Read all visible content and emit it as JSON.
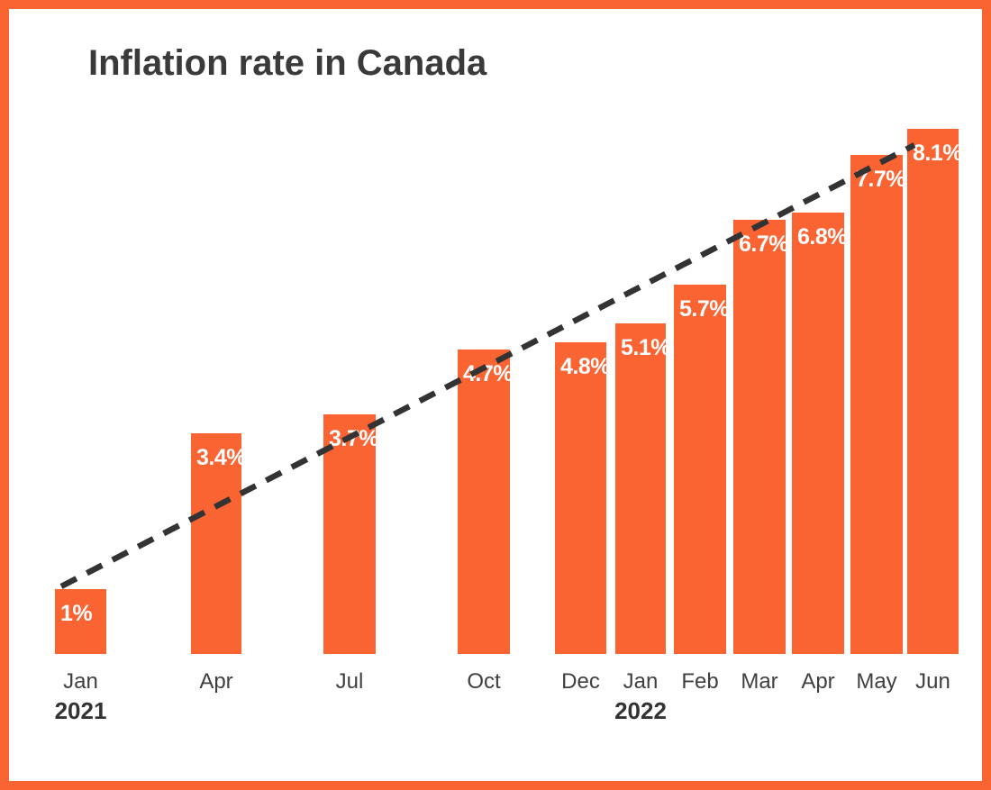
{
  "title": "Inflation rate in Canada",
  "chart_data": {
    "type": "bar",
    "title": "Inflation rate in Canada",
    "unit": "%",
    "categories": [
      "Jan",
      "Apr",
      "Jul",
      "Oct",
      "Dec",
      "Jan",
      "Feb",
      "Mar",
      "Apr",
      "May",
      "Jun"
    ],
    "values": [
      1,
      3.4,
      3.7,
      4.7,
      4.8,
      5.1,
      5.7,
      6.7,
      6.8,
      7.7,
      8.1
    ],
    "bar_labels": [
      "1%",
      "3.4%",
      "3.7%",
      "4.7%",
      "4.8%",
      "5.1%",
      "5.7%",
      "6.7%",
      "6.8%",
      "7.7%",
      "8.1%"
    ],
    "year_markers": [
      {
        "label": "2021",
        "category_index": 0
      },
      {
        "label": "2022",
        "category_index": 5
      }
    ],
    "ylim": [
      0,
      8.5
    ],
    "grid": false,
    "legend": false,
    "xlabel": "",
    "ylabel": "",
    "bar_color": "#fa6332",
    "bar_label_color": "#ffffff",
    "trend_line": {
      "present": true,
      "style": "dashed",
      "color": "#333333"
    },
    "frame_border_color": "#fa6332",
    "title_color": "#3a3a3a",
    "axis_label_color": "#3f3f3f"
  }
}
